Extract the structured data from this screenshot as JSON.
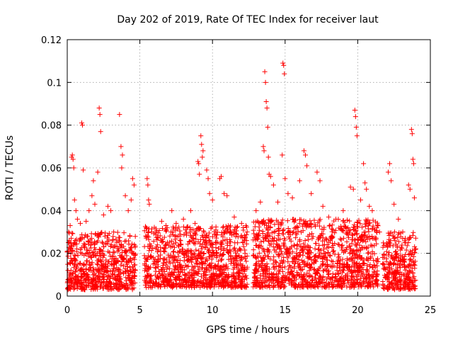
{
  "chart_data": {
    "type": "scatter",
    "title": "Day 202 of 2019, Rate Of TEC Index for receiver laut",
    "xlabel": "GPS time / hours",
    "ylabel": "ROTI / TECUs",
    "xlim": [
      0,
      25
    ],
    "ylim": [
      0,
      0.12
    ],
    "x_ticks": [
      "0",
      "5",
      "10",
      "15",
      "20",
      "25"
    ],
    "y_ticks": [
      "0",
      "0.02",
      "0.04",
      "0.06",
      "0.08",
      "0.1",
      "0.12"
    ],
    "grid": true,
    "marker": "plus",
    "color": "#ff0000",
    "series": [
      {
        "values": [
          [
            0.05,
            0.012
          ],
          [
            0.1,
            0.03
          ],
          [
            0.15,
            0.025
          ],
          [
            0.2,
            0.033
          ],
          [
            0.3,
            0.065
          ],
          [
            0.35,
            0.066
          ],
          [
            0.4,
            0.064
          ],
          [
            0.45,
            0.06
          ],
          [
            0.5,
            0.045
          ],
          [
            0.6,
            0.04
          ],
          [
            0.7,
            0.036
          ],
          [
            0.9,
            0.034
          ],
          [
            1.0,
            0.081
          ],
          [
            1.05,
            0.08
          ],
          [
            1.1,
            0.059
          ],
          [
            1.3,
            0.035
          ],
          [
            1.5,
            0.04
          ],
          [
            1.7,
            0.047
          ],
          [
            1.8,
            0.054
          ],
          [
            1.9,
            0.043
          ],
          [
            2.1,
            0.058
          ],
          [
            2.2,
            0.088
          ],
          [
            2.25,
            0.085
          ],
          [
            2.3,
            0.077
          ],
          [
            2.5,
            0.038
          ],
          [
            2.8,
            0.042
          ],
          [
            3.0,
            0.04
          ],
          [
            3.2,
            0.03
          ],
          [
            3.6,
            0.085
          ],
          [
            3.7,
            0.07
          ],
          [
            3.75,
            0.06
          ],
          [
            3.8,
            0.066
          ],
          [
            4.0,
            0.047
          ],
          [
            4.2,
            0.04
          ],
          [
            4.4,
            0.045
          ],
          [
            4.5,
            0.055
          ],
          [
            4.6,
            0.052
          ],
          [
            5.5,
            0.055
          ],
          [
            5.55,
            0.052
          ],
          [
            5.6,
            0.045
          ],
          [
            5.65,
            0.043
          ],
          [
            5.8,
            0.03
          ],
          [
            6.5,
            0.035
          ],
          [
            6.8,
            0.033
          ],
          [
            7.2,
            0.04
          ],
          [
            7.5,
            0.034
          ],
          [
            8.0,
            0.036
          ],
          [
            8.5,
            0.04
          ],
          [
            8.8,
            0.034
          ],
          [
            9.0,
            0.063
          ],
          [
            9.05,
            0.062
          ],
          [
            9.1,
            0.057
          ],
          [
            9.2,
            0.075
          ],
          [
            9.25,
            0.071
          ],
          [
            9.3,
            0.065
          ],
          [
            9.35,
            0.068
          ],
          [
            9.6,
            0.059
          ],
          [
            9.7,
            0.055
          ],
          [
            9.8,
            0.048
          ],
          [
            10.0,
            0.045
          ],
          [
            10.5,
            0.055
          ],
          [
            10.6,
            0.056
          ],
          [
            10.8,
            0.048
          ],
          [
            11.0,
            0.047
          ],
          [
            11.5,
            0.037
          ],
          [
            12.0,
            0.034
          ],
          [
            12.3,
            0.033
          ],
          [
            13.0,
            0.04
          ],
          [
            13.3,
            0.044
          ],
          [
            13.5,
            0.07
          ],
          [
            13.55,
            0.068
          ],
          [
            13.6,
            0.105
          ],
          [
            13.65,
            0.1
          ],
          [
            13.7,
            0.091
          ],
          [
            13.75,
            0.088
          ],
          [
            13.8,
            0.079
          ],
          [
            13.85,
            0.065
          ],
          [
            13.9,
            0.057
          ],
          [
            14.0,
            0.056
          ],
          [
            14.2,
            0.052
          ],
          [
            14.5,
            0.044
          ],
          [
            14.8,
            0.066
          ],
          [
            14.85,
            0.109
          ],
          [
            14.9,
            0.108
          ],
          [
            14.95,
            0.104
          ],
          [
            15.0,
            0.055
          ],
          [
            15.2,
            0.048
          ],
          [
            15.5,
            0.046
          ],
          [
            16.0,
            0.054
          ],
          [
            16.3,
            0.068
          ],
          [
            16.4,
            0.066
          ],
          [
            16.5,
            0.061
          ],
          [
            16.8,
            0.048
          ],
          [
            17.2,
            0.058
          ],
          [
            17.4,
            0.054
          ],
          [
            17.6,
            0.042
          ],
          [
            18.0,
            0.037
          ],
          [
            18.5,
            0.036
          ],
          [
            19.0,
            0.04
          ],
          [
            19.5,
            0.051
          ],
          [
            19.7,
            0.05
          ],
          [
            19.8,
            0.087
          ],
          [
            19.85,
            0.084
          ],
          [
            19.9,
            0.079
          ],
          [
            19.95,
            0.075
          ],
          [
            20.2,
            0.045
          ],
          [
            20.4,
            0.062
          ],
          [
            20.5,
            0.053
          ],
          [
            20.6,
            0.05
          ],
          [
            20.8,
            0.042
          ],
          [
            21.0,
            0.04
          ],
          [
            21.5,
            0.03
          ],
          [
            22.1,
            0.058
          ],
          [
            22.2,
            0.062
          ],
          [
            22.3,
            0.054
          ],
          [
            22.5,
            0.043
          ],
          [
            22.8,
            0.036
          ],
          [
            23.1,
            0.03
          ],
          [
            23.5,
            0.052
          ],
          [
            23.6,
            0.05
          ],
          [
            23.7,
            0.078
          ],
          [
            23.75,
            0.076
          ],
          [
            23.8,
            0.064
          ],
          [
            23.85,
            0.062
          ],
          [
            23.9,
            0.046
          ]
        ]
      }
    ],
    "dense_band": [
      {
        "x": [
          0,
          4.7
        ],
        "y": [
          0.003,
          0.03
        ]
      },
      {
        "x": [
          5.3,
          12.4
        ],
        "y": [
          0.004,
          0.033
        ]
      },
      {
        "x": [
          12.8,
          21.4
        ],
        "y": [
          0.004,
          0.036
        ]
      },
      {
        "x": [
          21.7,
          24.0
        ],
        "y": [
          0.003,
          0.03
        ]
      }
    ]
  }
}
